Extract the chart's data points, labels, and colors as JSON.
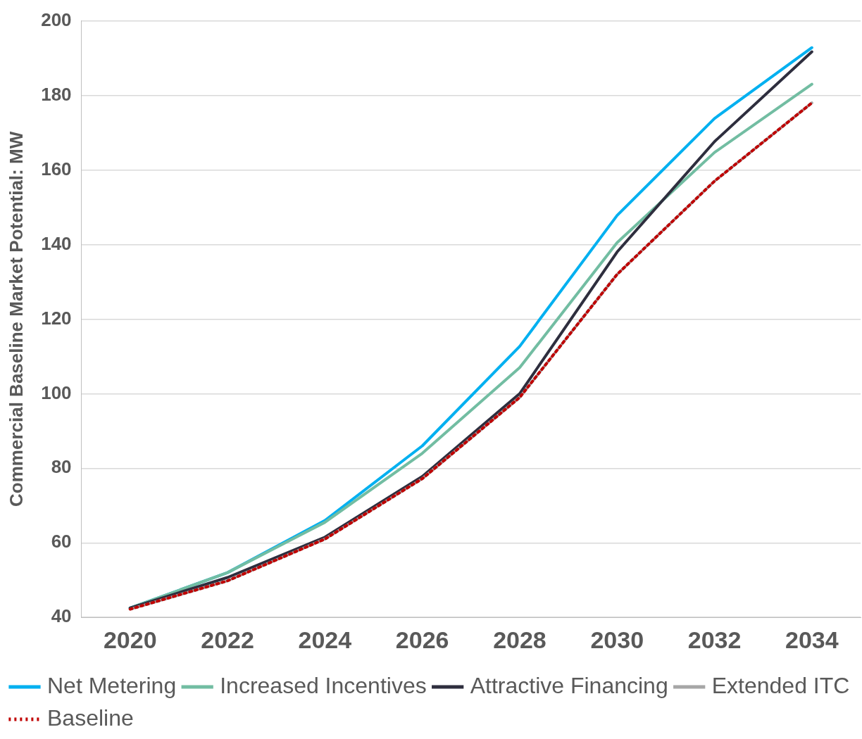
{
  "chart_data": {
    "type": "line",
    "ylabel": "Commercial Baseline Market Potential: MW",
    "categories": [
      "2020",
      "2022",
      "2024",
      "2026",
      "2028",
      "2030",
      "2032",
      "2034"
    ],
    "series": [
      {
        "name": "Net Metering",
        "color": "#00b0f0",
        "values": [
          42.5,
          52,
          66,
          86,
          112.7,
          147.8,
          173.8,
          192.8
        ]
      },
      {
        "name": "Increased Incentives",
        "color": "#72bda2",
        "values": [
          42.5,
          52,
          65.5,
          84,
          107,
          140.5,
          164.7,
          183
        ]
      },
      {
        "name": "Attractive Financing",
        "color": "#2e2e3e",
        "values": [
          42.5,
          50.7,
          61.5,
          77.8,
          100,
          138,
          167.6,
          191.7
        ]
      },
      {
        "name": "Extended ITC",
        "color": "#a6a6a6",
        "values": [
          42.2,
          49.8,
          61,
          77.2,
          99,
          132,
          157,
          178
        ]
      },
      {
        "name": "Baseline",
        "color": "#c00000",
        "line_style": "dotted",
        "values": [
          42.2,
          49.8,
          61,
          77.2,
          99,
          132,
          157,
          178
        ]
      }
    ],
    "ylim": [
      40,
      200
    ],
    "yticks": [
      40,
      60,
      80,
      100,
      120,
      140,
      160,
      180,
      200
    ],
    "grid": "y",
    "legend": "bottom",
    "marker": "none"
  }
}
